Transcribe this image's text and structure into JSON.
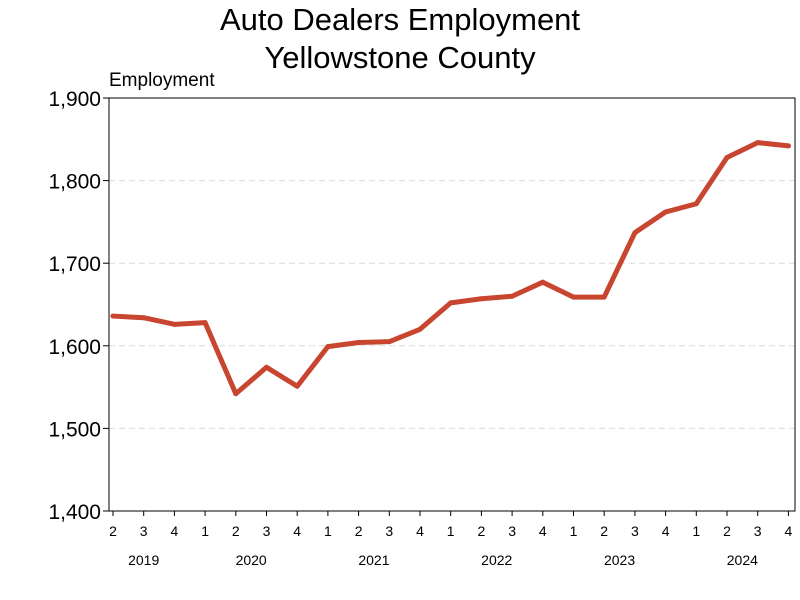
{
  "chart_data": {
    "type": "line",
    "title": [
      "Auto Dealers Employment",
      "Yellowstone County"
    ],
    "ylabel": "Employment",
    "xlabel": "",
    "ylim": [
      1400,
      1900
    ],
    "yticks": [
      1400,
      1500,
      1600,
      1700,
      1800,
      1900
    ],
    "ytick_labels": [
      "1,400",
      "1,500",
      "1,600",
      "1,700",
      "1,800",
      "1,900"
    ],
    "grid": true,
    "x": [
      "2019 Q2",
      "2019 Q3",
      "2019 Q4",
      "2020 Q1",
      "2020 Q2",
      "2020 Q3",
      "2020 Q4",
      "2021 Q1",
      "2021 Q2",
      "2021 Q3",
      "2021 Q4",
      "2022 Q1",
      "2022 Q2",
      "2022 Q3",
      "2022 Q4",
      "2023 Q1",
      "2023 Q2",
      "2023 Q3",
      "2023 Q4",
      "2024 Q1",
      "2024 Q2",
      "2024 Q3",
      "2024 Q4"
    ],
    "quarter_labels": [
      "2",
      "3",
      "4",
      "1",
      "2",
      "3",
      "4",
      "1",
      "2",
      "3",
      "4",
      "1",
      "2",
      "3",
      "4",
      "1",
      "2",
      "3",
      "4",
      "1",
      "2",
      "3",
      "4"
    ],
    "years": [
      {
        "label": "2019",
        "first_index": 0,
        "last_index": 2
      },
      {
        "label": "2020",
        "first_index": 3,
        "last_index": 6
      },
      {
        "label": "2021",
        "first_index": 7,
        "last_index": 10
      },
      {
        "label": "2022",
        "first_index": 11,
        "last_index": 14
      },
      {
        "label": "2023",
        "first_index": 15,
        "last_index": 18
      },
      {
        "label": "2024",
        "first_index": 19,
        "last_index": 22
      }
    ],
    "series": [
      {
        "values": [
          1636,
          1634,
          1626,
          1628,
          1542,
          1574,
          1551,
          1599,
          1604,
          1605,
          1620,
          1652,
          1657,
          1660,
          1677,
          1659,
          1659,
          1737,
          1762,
          1772,
          1828,
          1846,
          1842
        ],
        "color": "#c8452f"
      }
    ]
  }
}
